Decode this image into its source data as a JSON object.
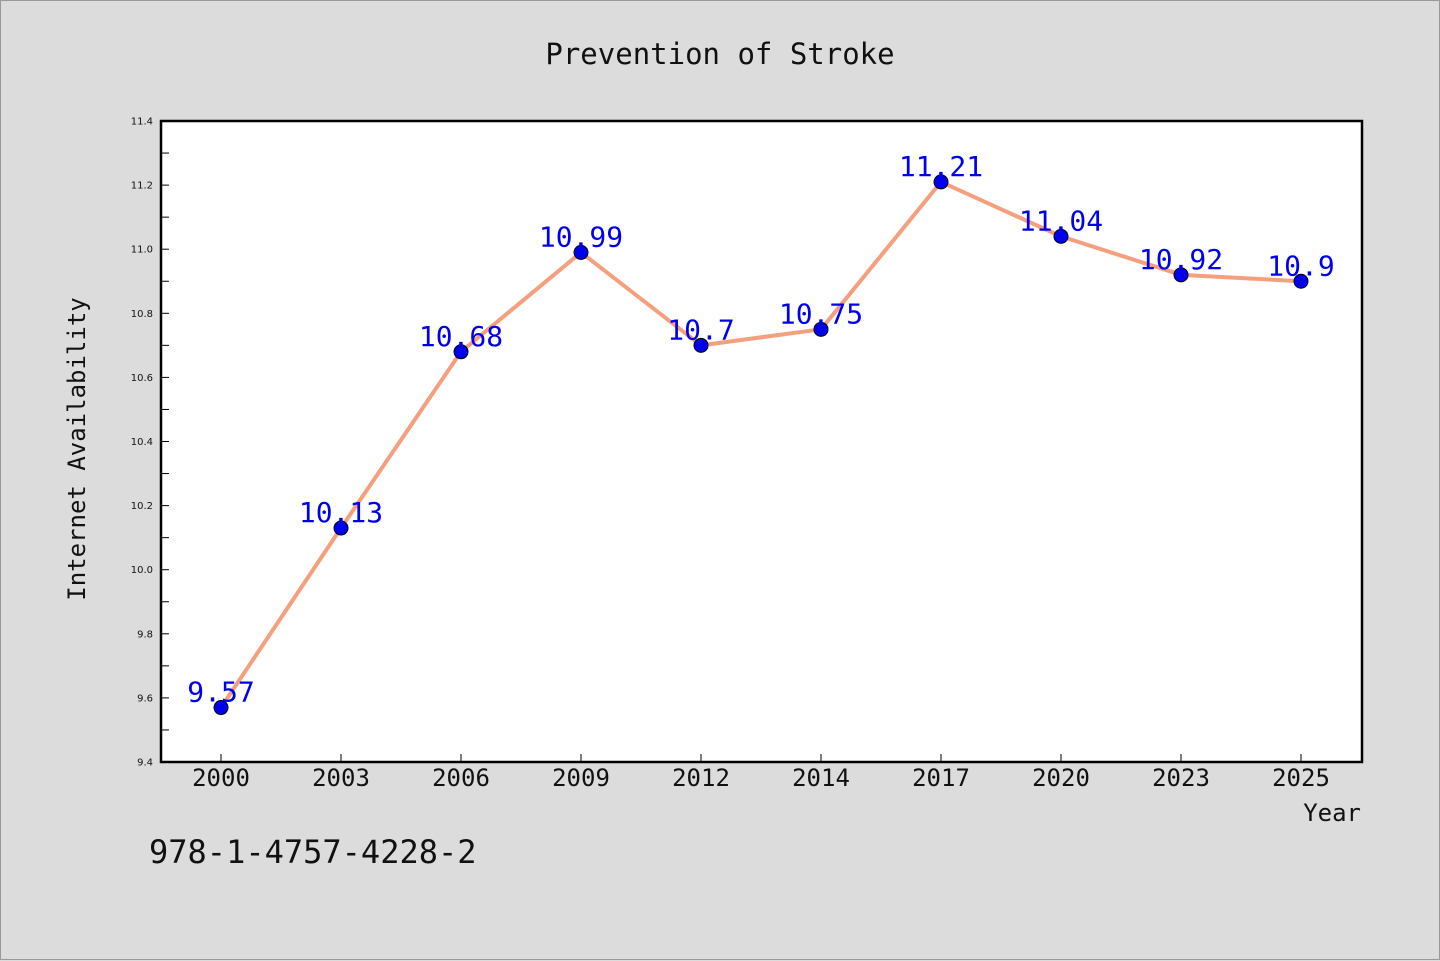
{
  "chart_data": {
    "type": "line",
    "title": "Prevention of Stroke",
    "xlabel": "Year",
    "ylabel": "Internet Availability",
    "categories": [
      "2000",
      "2003",
      "2006",
      "2009",
      "2012",
      "2014",
      "2017",
      "2020",
      "2023",
      "2025"
    ],
    "values": [
      9.57,
      10.13,
      10.68,
      10.99,
      10.7,
      10.75,
      11.21,
      11.04,
      10.92,
      10.9
    ],
    "data_labels": [
      "9.57",
      "10.13",
      "10.68",
      "10.99",
      "10.7",
      "10.75",
      "11.21",
      "11.04",
      "10.92",
      "10.9"
    ],
    "ylim": [
      9.4,
      11.4
    ],
    "yticks": [
      "9.4",
      "9.6",
      "9.8",
      "10.0",
      "10.2",
      "10.4",
      "10.6",
      "10.8",
      "11.0",
      "11.2",
      "11.4"
    ],
    "grid": false,
    "line_color": "#f4a07e",
    "marker_color": "#0000ee",
    "label_color": "#0000ee"
  },
  "footer": {
    "isbn": "978-1-4757-4228-2"
  }
}
